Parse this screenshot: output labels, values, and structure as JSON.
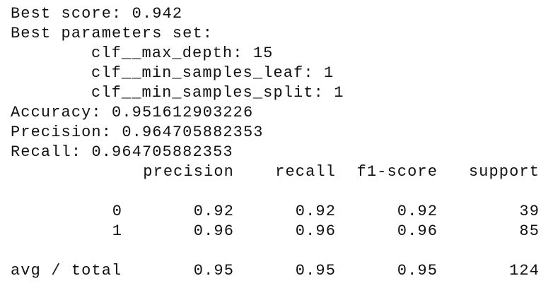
{
  "best_score": {
    "label": "Best score:",
    "value": "0.942"
  },
  "best_parameters": {
    "label": "Best parameters set:",
    "params": [
      {
        "name": "clf__max_depth:",
        "value": "15"
      },
      {
        "name": "clf__min_samples_leaf:",
        "value": "1"
      },
      {
        "name": "clf__min_samples_split:",
        "value": "1"
      }
    ]
  },
  "metrics": [
    {
      "label": "Accuracy:",
      "value": "0.951612903226"
    },
    {
      "label": "Precision:",
      "value": "0.964705882353"
    },
    {
      "label": "Recall:",
      "value": "0.964705882353"
    }
  ],
  "report": {
    "columns": [
      "precision",
      "recall",
      "f1-score",
      "support"
    ],
    "rows": [
      {
        "label": "0",
        "cells": [
          "0.92",
          "0.92",
          "0.92",
          "39"
        ]
      },
      {
        "label": "1",
        "cells": [
          "0.96",
          "0.96",
          "0.96",
          "85"
        ]
      },
      {
        "label": "avg / total",
        "cells": [
          "0.95",
          "0.95",
          "0.95",
          "124"
        ]
      }
    ]
  }
}
